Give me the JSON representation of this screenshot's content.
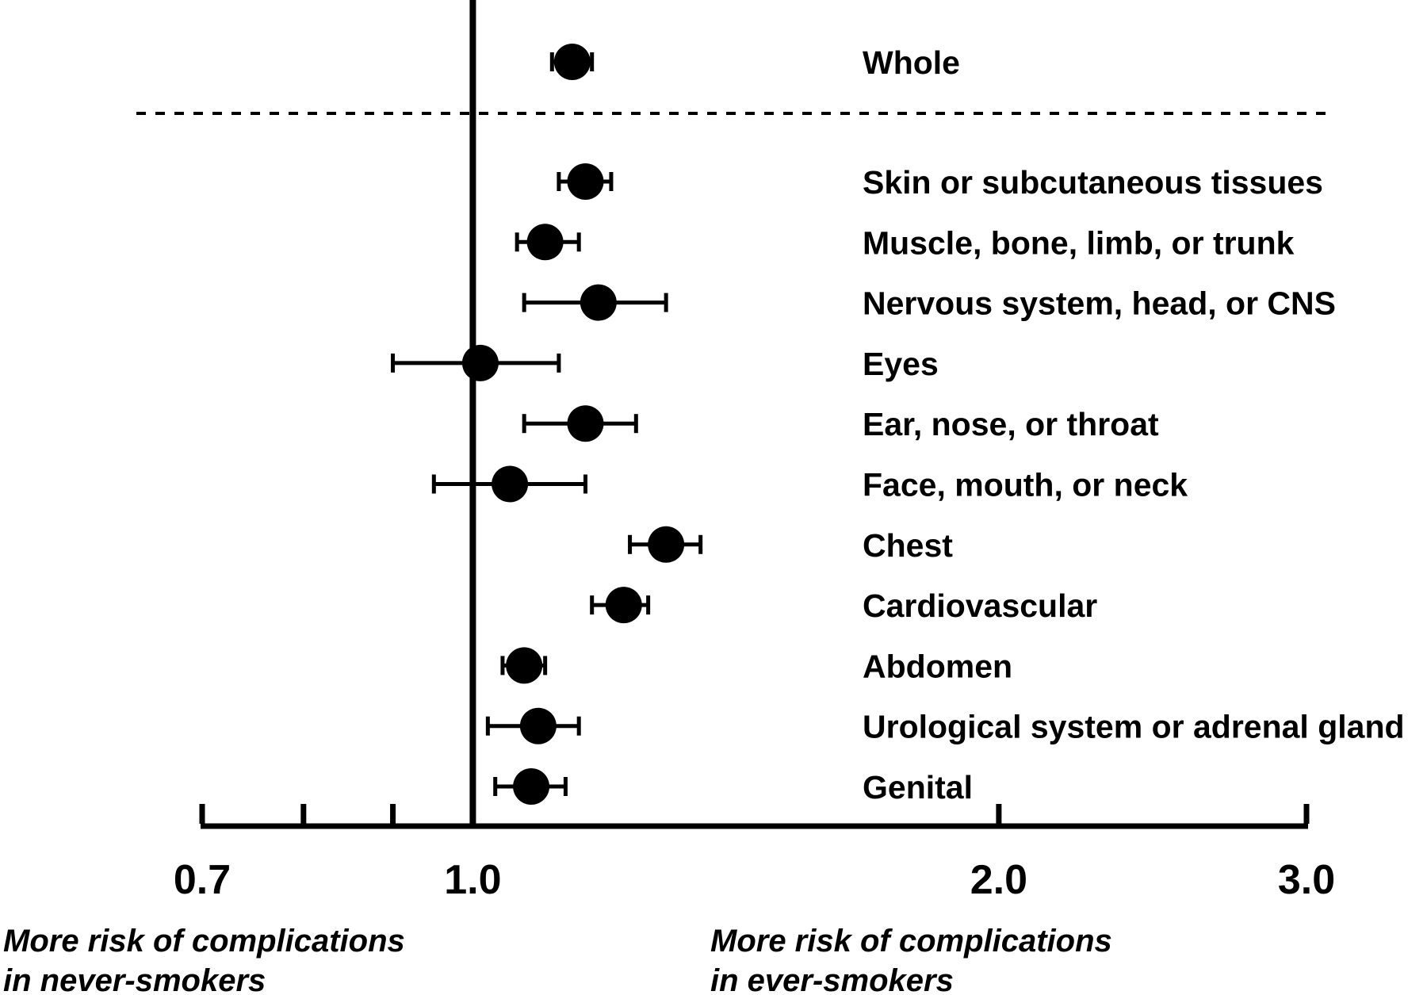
{
  "chart_data": {
    "type": "forest",
    "x_scale": "log",
    "xlim": [
      0.7,
      3.0
    ],
    "reference_line": 1.0,
    "ticks": [
      {
        "value": 0.7,
        "label": "0.7"
      },
      {
        "value": 0.8,
        "label": ""
      },
      {
        "value": 0.9,
        "label": ""
      },
      {
        "value": 1.0,
        "label": "1.0"
      },
      {
        "value": 2.0,
        "label": "2.0"
      },
      {
        "value": 3.0,
        "label": "3.0"
      }
    ],
    "overall": {
      "label": "Whole",
      "estimate": 1.14,
      "lower": 1.11,
      "upper": 1.17
    },
    "rows": [
      {
        "label": "Skin or subcutaneous tissues",
        "estimate": 1.16,
        "lower": 1.12,
        "upper": 1.2
      },
      {
        "label": "Muscle, bone, limb, or trunk",
        "estimate": 1.1,
        "lower": 1.06,
        "upper": 1.15
      },
      {
        "label": "Nervous system, head, or CNS",
        "estimate": 1.18,
        "lower": 1.07,
        "upper": 1.29
      },
      {
        "label": "Eyes",
        "estimate": 1.01,
        "lower": 0.9,
        "upper": 1.12
      },
      {
        "label": "Ear, nose, or throat",
        "estimate": 1.16,
        "lower": 1.07,
        "upper": 1.24
      },
      {
        "label": "Face, mouth, or neck",
        "estimate": 1.05,
        "lower": 0.95,
        "upper": 1.16
      },
      {
        "label": "Chest",
        "estimate": 1.29,
        "lower": 1.23,
        "upper": 1.35
      },
      {
        "label": "Cardiovascular",
        "estimate": 1.22,
        "lower": 1.17,
        "upper": 1.26
      },
      {
        "label": "Abdomen",
        "estimate": 1.07,
        "lower": 1.04,
        "upper": 1.1
      },
      {
        "label": "Urological system or adrenal gland",
        "estimate": 1.09,
        "lower": 1.02,
        "upper": 1.15
      },
      {
        "label": "Genital",
        "estimate": 1.08,
        "lower": 1.03,
        "upper": 1.13
      }
    ],
    "annotations": {
      "left": [
        "More risk of complications",
        "in never-smokers"
      ],
      "right": [
        "More risk of complications",
        "in ever-smokers"
      ]
    }
  }
}
